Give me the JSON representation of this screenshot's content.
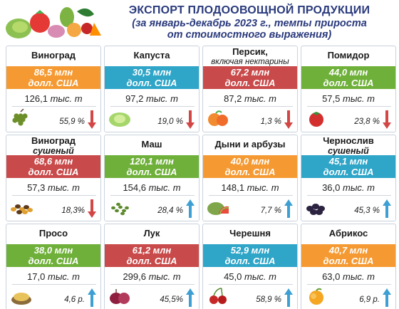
{
  "header": {
    "title": "ЭКСПОРТ ПЛОДООВОЩНОЙ ПРОДУКЦИИ",
    "subtitle_line1": "(за январь-декабрь 2023 г., темпы прироста",
    "subtitle_line2": "от стоимостного выражения)"
  },
  "colors": {
    "orange": "#f59a33",
    "blue": "#2fa5c8",
    "red": "#c94a4a",
    "green": "#6fb03a",
    "arrow_down": "#d24646",
    "arrow_up": "#3d9fd3"
  },
  "chart_data": {
    "type": "table",
    "columns": [
      "product",
      "value",
      "value_unit",
      "volume",
      "volume_unit",
      "growth",
      "direction"
    ],
    "items": [
      {
        "name": "Виноград",
        "subname": "",
        "value": "86,5 млн",
        "value_unit": "долл. США",
        "volume": "126,1",
        "volume_unit": "тыс. т",
        "growth": "55,9 %",
        "direction": "down",
        "color": "orange",
        "icon": "grapes-icon"
      },
      {
        "name": "Капуста",
        "subname": "",
        "value": "30,5 млн",
        "value_unit": "долл. США",
        "volume": "97,2",
        "volume_unit": "тыс. т",
        "growth": "19,0 %",
        "direction": "down",
        "color": "blue",
        "icon": "cabbage-icon"
      },
      {
        "name": "Персик,",
        "subname": "включая нектарины",
        "value": "67,2 млн",
        "value_unit": "долл. США",
        "volume": "87,2",
        "volume_unit": "тыс. т",
        "growth": "1,3 %",
        "direction": "down",
        "color": "red",
        "icon": "peach-icon"
      },
      {
        "name": "Помидор",
        "subname": "",
        "value": "44,0 млн",
        "value_unit": "долл. США",
        "volume": "57,5",
        "volume_unit": "тыс. т",
        "growth": "23,8 %",
        "direction": "down",
        "color": "green",
        "icon": "tomato-icon"
      },
      {
        "name": "Виноград",
        "subname": "сушеный",
        "value": "68,6 млн",
        "value_unit": "долл. США",
        "volume": "57,3",
        "volume_unit": "тыс. т",
        "growth": "18,3%",
        "direction": "down",
        "color": "red",
        "icon": "raisins-icon"
      },
      {
        "name": "Маш",
        "subname": "",
        "value": "120,1 млн",
        "value_unit": "долл. США",
        "volume": "154,6",
        "volume_unit": "тыс. т",
        "growth": "28,4 %",
        "direction": "up",
        "color": "green",
        "icon": "mung-bean-icon"
      },
      {
        "name": "Дыни и арбузы",
        "subname": "",
        "value": "40,0 млн",
        "value_unit": "долл. США",
        "volume": "148,1",
        "volume_unit": "тыс. т",
        "growth": "7,7 %",
        "direction": "up",
        "color": "orange",
        "icon": "melon-icon"
      },
      {
        "name": "Чернослив",
        "subname": "сушеный",
        "value": "45,1 млн",
        "value_unit": "долл. США",
        "volume": "36,0",
        "volume_unit": "тыс. т",
        "growth": "45,3 %",
        "direction": "up",
        "color": "blue",
        "icon": "prunes-icon"
      },
      {
        "name": "Просо",
        "subname": "",
        "value": "38,0 млн",
        "value_unit": "долл. США",
        "volume": "17,0",
        "volume_unit": "тыс. т",
        "growth": "4,6 р.",
        "direction": "up",
        "color": "green",
        "icon": "millet-icon"
      },
      {
        "name": "Лук",
        "subname": "",
        "value": "61,2 млн",
        "value_unit": "долл. США",
        "volume": "299,6",
        "volume_unit": "тыс. т",
        "growth": "45,5%",
        "direction": "up",
        "color": "red",
        "icon": "onion-icon"
      },
      {
        "name": "Черешня",
        "subname": "",
        "value": "52,9 млн",
        "value_unit": "долл. США",
        "volume": "45,0",
        "volume_unit": "тыс. т",
        "growth": "58,9 %",
        "direction": "up",
        "color": "blue",
        "icon": "cherry-icon"
      },
      {
        "name": "Абрикос",
        "subname": "",
        "value": "40,7 млн",
        "value_unit": "долл. США",
        "volume": "63,0",
        "volume_unit": "тыс. т",
        "growth": "6,9 р.",
        "direction": "up",
        "color": "orange",
        "icon": "apricot-icon"
      }
    ]
  }
}
